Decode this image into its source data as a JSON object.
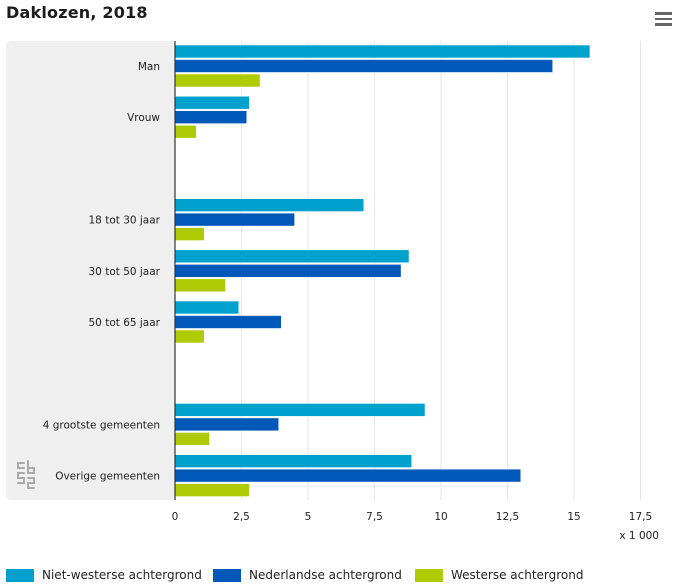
{
  "header": {
    "title": "Daklozen, 2018",
    "menu_icon": "hamburger-menu-icon"
  },
  "logo": {
    "name": "cbs-logo",
    "text": "cbs"
  },
  "colors": {
    "plot_background": "#efefef",
    "grid": "#ffffff",
    "niet_westerse": "#00a1cd",
    "nederlandse": "#0058b8",
    "westerse": "#afcb05"
  },
  "chart_data": {
    "type": "bar",
    "orientation": "horizontal",
    "title": "Daklozen, 2018",
    "categories": [
      "Man",
      "Vrouw",
      "",
      "18 tot 30 jaar",
      "30 tot 50 jaar",
      "50 tot 65 jaar",
      "",
      "4 grootste gemeenten",
      "Overige gemeenten"
    ],
    "series": [
      {
        "name": "Niet-westerse achtergrond",
        "color": "#00a1cd",
        "values": [
          15.6,
          2.8,
          null,
          7.1,
          8.8,
          2.4,
          null,
          9.4,
          8.9
        ]
      },
      {
        "name": "Nederlandse achtergrond",
        "color": "#0058b8",
        "values": [
          14.2,
          2.7,
          null,
          4.5,
          8.5,
          4.0,
          null,
          3.9,
          13.0
        ]
      },
      {
        "name": "Westerse achtergrond",
        "color": "#afcb05",
        "values": [
          3.2,
          0.8,
          null,
          1.1,
          1.9,
          1.1,
          null,
          1.3,
          2.8
        ]
      }
    ],
    "xlim": [
      0,
      17.5
    ],
    "xticks": [
      0,
      2.5,
      5,
      7.5,
      10,
      12.5,
      15,
      17.5
    ],
    "xtick_labels": [
      "0",
      "2,5",
      "5",
      "7,5",
      "10",
      "12,5",
      "15",
      "17,5"
    ],
    "xlabel": "x 1 000",
    "ylabel": "",
    "grid": true,
    "legend_position": "bottom"
  }
}
